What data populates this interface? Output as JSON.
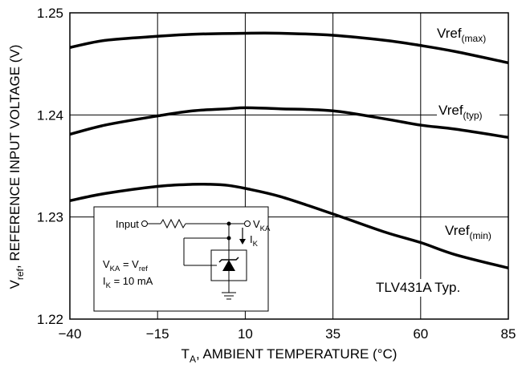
{
  "chart_data": {
    "type": "line",
    "xlabel": "T",
    "xlabel_sub": "A",
    "xlabel_rest": ", AMBIENT TEMPERATURE (°C)",
    "ylabel": "V",
    "ylabel_sub": "ref",
    "ylabel_rest": ", REFERENCE INPUT VOLTAGE (V)",
    "xlim": [
      -40,
      85
    ],
    "ylim": [
      1.22,
      1.25
    ],
    "x_ticks": [
      "−40",
      "−15",
      "10",
      "35",
      "60",
      "85"
    ],
    "x_tick_values": [
      -40,
      -15,
      10,
      35,
      60,
      85
    ],
    "y_ticks": [
      "1.22",
      "1.23",
      "1.24",
      "1.25"
    ],
    "y_tick_values": [
      1.22,
      1.23,
      1.24,
      1.25
    ],
    "grid": true,
    "series": [
      {
        "name": "Vref",
        "name_sub": "(max)",
        "x": [
          -40,
          -30,
          -15,
          -5,
          10,
          20,
          35,
          50,
          60,
          70,
          85
        ],
        "y": [
          1.2466,
          1.2473,
          1.2477,
          1.2479,
          1.248,
          1.248,
          1.2478,
          1.2473,
          1.2468,
          1.2462,
          1.2451
        ]
      },
      {
        "name": "Vref",
        "name_sub": "(typ)",
        "x": [
          -40,
          -30,
          -15,
          -5,
          5,
          10,
          20,
          35,
          50,
          60,
          70,
          85
        ],
        "y": [
          1.2381,
          1.239,
          1.2399,
          1.2404,
          1.2406,
          1.2407,
          1.2406,
          1.2404,
          1.2396,
          1.239,
          1.2386,
          1.2378
        ]
      },
      {
        "name": "Vref",
        "name_sub": "(min)",
        "x": [
          -40,
          -30,
          -15,
          -5,
          0,
          5,
          10,
          20,
          35,
          50,
          60,
          70,
          85
        ],
        "y": [
          1.2316,
          1.2323,
          1.233,
          1.2332,
          1.2332,
          1.2331,
          1.2328,
          1.232,
          1.2303,
          1.2285,
          1.2275,
          1.2263,
          1.225
        ]
      }
    ],
    "annotation": "TLV431A Typ."
  },
  "inset": {
    "input_label": "Input",
    "vka_label": "V",
    "vka_sub": "KA",
    "ik_label": "I",
    "ik_sub": "K",
    "eq1_a": "V",
    "eq1_a_sub": "KA",
    "eq1_b": " = V",
    "eq1_b_sub": "ref",
    "eq2_a": "I",
    "eq2_a_sub": "K",
    "eq2_b": " = 10 mA"
  }
}
